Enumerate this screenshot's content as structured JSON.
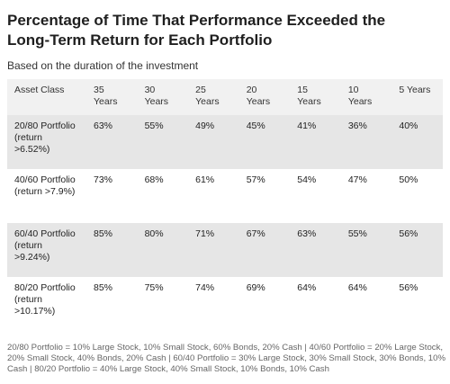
{
  "title": "Percentage of Time That Performance Exceeded the Long-Term Return for Each Portfolio",
  "subtitle": "Based on the duration of the investment",
  "table": {
    "header": [
      "Asset Class",
      "35 Years",
      "30 Years",
      "25 Years",
      "20 Years",
      "15 Years",
      "10 Years",
      "5 Years"
    ],
    "rows": [
      [
        "20/80 Portfolio (return >6.52%)",
        "63%",
        "55%",
        "49%",
        "45%",
        "41%",
        "36%",
        "40%"
      ],
      [
        "40/60 Portfolio (return >7.9%)",
        "73%",
        "68%",
        "61%",
        "57%",
        "54%",
        "47%",
        "50%"
      ],
      [
        "60/40 Portfolio (return >9.24%)",
        "85%",
        "80%",
        "71%",
        "67%",
        "63%",
        "55%",
        "56%"
      ],
      [
        "80/20 Portfolio (return >10.17%)",
        "85%",
        "75%",
        "74%",
        "69%",
        "64%",
        "64%",
        "56%"
      ]
    ]
  },
  "footnote": "20/80 Portfolio = 10% Large Stock, 10% Small Stock, 60% Bonds, 20% Cash | 40/60 Portfolio = 20% Large Stock, 20% Small Stock, 40% Bonds, 20% Cash | 60/40 Portfolio = 30% Large Stock, 30% Small Stock, 30% Bonds, 10% Cash | 80/20 Portfolio = 40% Large Stock, 40% Small Stock, 10% Bonds, 10% Cash"
}
